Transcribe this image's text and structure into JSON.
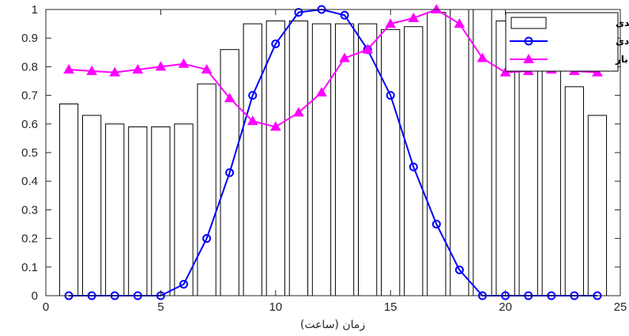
{
  "chart_data": {
    "type": "bar+line",
    "xlabel": "زمان (ساعت)",
    "ylabel": "",
    "xlim": [
      0,
      25
    ],
    "ylim": [
      0,
      1
    ],
    "x_ticks": [
      "0",
      "5",
      "10",
      "15",
      "20",
      "25"
    ],
    "y_ticks": [
      "0",
      "0.1",
      "0.2",
      "0.3",
      "0.4",
      "0.5",
      "0.6",
      "0.7",
      "0.8",
      "0.9",
      "1"
    ],
    "grid": false,
    "legend_position": "top-right",
    "x": [
      1,
      2,
      3,
      4,
      5,
      6,
      7,
      8,
      9,
      10,
      11,
      12,
      13,
      14,
      15,
      16,
      17,
      18,
      19,
      20,
      21,
      22,
      23,
      24
    ],
    "series": [
      {
        "name": "خورشیدی",
        "kind": "bar",
        "color": "#000000",
        "fill": "#ffffff",
        "values": [
          0.67,
          0.63,
          0.6,
          0.59,
          0.59,
          0.6,
          0.74,
          0.86,
          0.95,
          0.96,
          0.96,
          0.95,
          0.95,
          0.95,
          0.93,
          0.94,
          0.99,
          1.0,
          1.0,
          0.96,
          0.86,
          0.85,
          0.73,
          0.63
        ]
      },
      {
        "name": "بادی",
        "kind": "line",
        "marker": "circle",
        "color": "#0000ff",
        "values": [
          0,
          0,
          0,
          0,
          0,
          0.04,
          0.2,
          0.43,
          0.7,
          0.88,
          0.99,
          1.0,
          0.98,
          0.86,
          0.7,
          0.45,
          0.25,
          0.09,
          0,
          0,
          0,
          0,
          0,
          0
        ]
      },
      {
        "name": "بار",
        "kind": "line",
        "marker": "triangle",
        "color": "#ff00ff",
        "values": [
          0.79,
          0.785,
          0.78,
          0.79,
          0.8,
          0.81,
          0.79,
          0.69,
          0.61,
          0.59,
          0.64,
          0.71,
          0.83,
          0.86,
          0.95,
          0.97,
          1.0,
          0.95,
          0.83,
          0.78,
          0.785,
          0.79,
          0.785,
          0.78
        ]
      }
    ]
  }
}
